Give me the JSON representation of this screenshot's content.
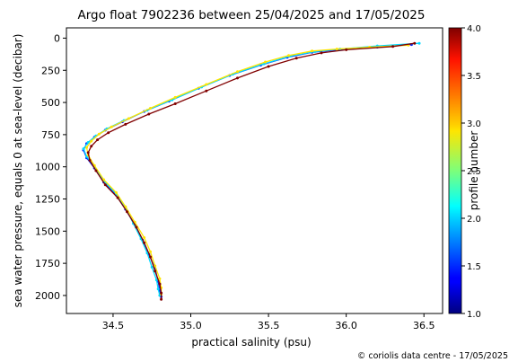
{
  "chart_data": {
    "type": "line",
    "title": "Argo float 7902236 between 25/04/2025 and 17/05/2025",
    "xlabel": "practical salinity (psu)",
    "ylabel": "sea water pressure, equals 0 at sea-level (decibar)",
    "xlim": [
      34.2,
      36.62
    ],
    "ylim": [
      2140,
      -80
    ],
    "y_inverted": true,
    "xticks": [
      34.5,
      35.0,
      35.5,
      36.0,
      36.5
    ],
    "xtick_labels": [
      "34.5",
      "35.0",
      "35.5",
      "36.0",
      "36.5"
    ],
    "yticks": [
      0,
      250,
      500,
      750,
      1000,
      1250,
      1500,
      1750,
      2000
    ],
    "ytick_labels": [
      "0",
      "250",
      "500",
      "750",
      "1000",
      "1250",
      "1500",
      "1750",
      "2000"
    ],
    "grid": false,
    "colorbar": {
      "label": "profile number",
      "range": [
        1.0,
        4.0
      ],
      "ticks": [
        1.0,
        1.5,
        2.0,
        2.5,
        3.0,
        3.5,
        4.0
      ],
      "tick_labels": [
        "1.0",
        "1.5",
        "2.0",
        "2.5",
        "3.0",
        "3.5",
        "4.0"
      ],
      "colormap": "jet"
    },
    "series": [
      {
        "profile": 1,
        "color": "#001cff",
        "points": [
          [
            36.42,
            50
          ],
          [
            36.2,
            70
          ],
          [
            35.96,
            90
          ],
          [
            35.78,
            110
          ],
          [
            35.62,
            150
          ],
          [
            35.45,
            210
          ],
          [
            35.25,
            290
          ],
          [
            35.05,
            390
          ],
          [
            34.86,
            490
          ],
          [
            34.7,
            570
          ],
          [
            34.56,
            650
          ],
          [
            34.45,
            715
          ],
          [
            34.38,
            770
          ],
          [
            34.33,
            820
          ],
          [
            34.31,
            870
          ],
          [
            34.33,
            930
          ],
          [
            34.38,
            1010
          ],
          [
            34.44,
            1120
          ],
          [
            34.52,
            1220
          ],
          [
            34.58,
            1330
          ],
          [
            34.64,
            1450
          ],
          [
            34.69,
            1570
          ],
          [
            34.73,
            1680
          ],
          [
            34.77,
            1790
          ],
          [
            34.79,
            1890
          ],
          [
            34.8,
            1960
          ],
          [
            34.81,
            2010
          ]
        ]
      },
      {
        "profile": 2,
        "color": "#00d8ff",
        "points": [
          [
            36.47,
            40
          ],
          [
            36.2,
            60
          ],
          [
            35.96,
            85
          ],
          [
            35.8,
            105
          ],
          [
            35.64,
            140
          ],
          [
            35.47,
            200
          ],
          [
            35.27,
            280
          ],
          [
            35.07,
            380
          ],
          [
            34.88,
            480
          ],
          [
            34.72,
            560
          ],
          [
            34.57,
            640
          ],
          [
            34.46,
            705
          ],
          [
            34.39,
            760
          ],
          [
            34.34,
            810
          ],
          [
            34.31,
            860
          ],
          [
            34.33,
            920
          ],
          [
            34.38,
            1000
          ],
          [
            34.44,
            1110
          ],
          [
            34.52,
            1210
          ],
          [
            34.58,
            1320
          ],
          [
            34.63,
            1440
          ],
          [
            34.68,
            1560
          ],
          [
            34.72,
            1670
          ],
          [
            34.75,
            1780
          ],
          [
            34.78,
            1880
          ],
          [
            34.79,
            1950
          ],
          [
            34.8,
            2000
          ]
        ]
      },
      {
        "profile": 3,
        "color": "#ffe500",
        "points": [
          [
            36.4,
            55
          ],
          [
            36.15,
            70
          ],
          [
            35.94,
            85
          ],
          [
            35.78,
            100
          ],
          [
            35.63,
            135
          ],
          [
            35.48,
            185
          ],
          [
            35.3,
            260
          ],
          [
            35.1,
            360
          ],
          [
            34.9,
            460
          ],
          [
            34.74,
            545
          ],
          [
            34.6,
            625
          ],
          [
            34.49,
            690
          ],
          [
            34.41,
            745
          ],
          [
            34.36,
            800
          ],
          [
            34.33,
            850
          ],
          [
            34.34,
            910
          ],
          [
            34.38,
            990
          ],
          [
            34.44,
            1100
          ],
          [
            34.52,
            1200
          ],
          [
            34.58,
            1310
          ],
          [
            34.64,
            1430
          ],
          [
            34.7,
            1550
          ],
          [
            34.74,
            1660
          ],
          [
            34.77,
            1770
          ],
          [
            34.8,
            1870
          ],
          [
            34.81,
            1940
          ],
          [
            34.81,
            1990
          ]
        ]
      },
      {
        "profile": 4,
        "color": "#800000",
        "points": [
          [
            36.44,
            40
          ],
          [
            36.3,
            65
          ],
          [
            36.0,
            90
          ],
          [
            35.84,
            115
          ],
          [
            35.68,
            155
          ],
          [
            35.5,
            220
          ],
          [
            35.3,
            310
          ],
          [
            35.1,
            410
          ],
          [
            34.9,
            510
          ],
          [
            34.73,
            590
          ],
          [
            34.58,
            670
          ],
          [
            34.47,
            735
          ],
          [
            34.4,
            790
          ],
          [
            34.36,
            840
          ],
          [
            34.34,
            890
          ],
          [
            34.35,
            950
          ],
          [
            34.39,
            1030
          ],
          [
            34.45,
            1140
          ],
          [
            34.53,
            1240
          ],
          [
            34.59,
            1350
          ],
          [
            34.65,
            1470
          ],
          [
            34.7,
            1590
          ],
          [
            34.74,
            1700
          ],
          [
            34.77,
            1810
          ],
          [
            34.8,
            1910
          ],
          [
            34.81,
            1980
          ],
          [
            34.81,
            2030
          ]
        ]
      }
    ]
  },
  "footer": {
    "credit": "© coriolis data centre - 17/05/2025"
  }
}
